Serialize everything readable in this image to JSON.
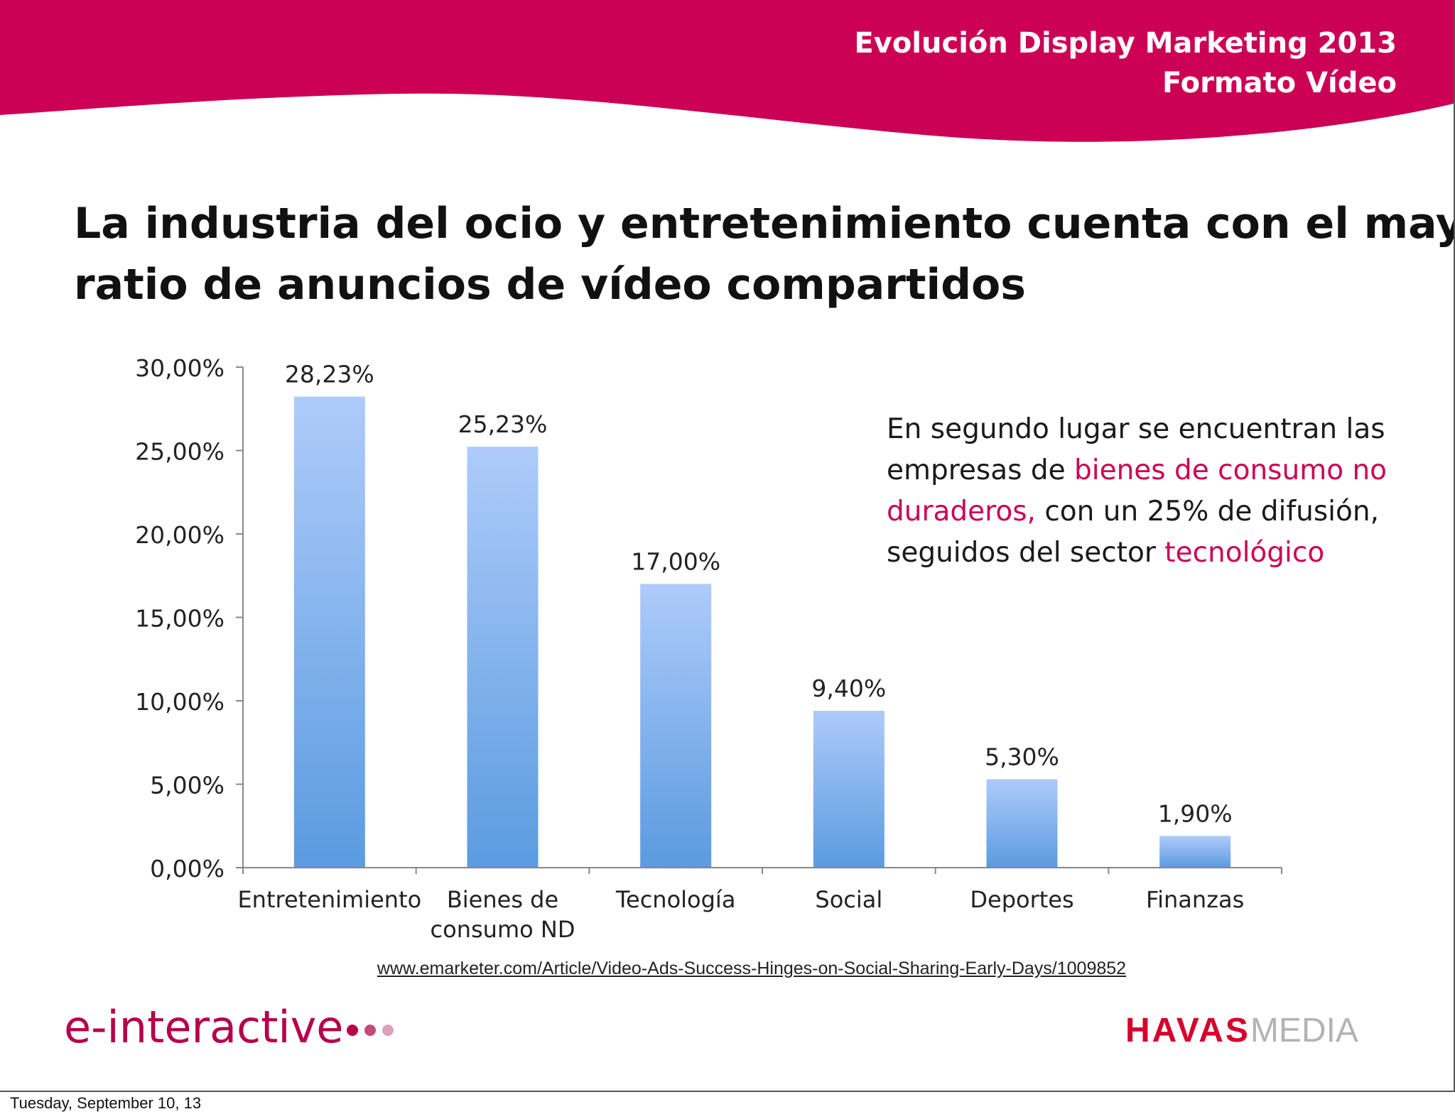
{
  "header": {
    "title": "Evolución Display Marketing 2013",
    "subtitle": "Formato Vídeo",
    "band_color": "#cc0055"
  },
  "headline": {
    "line1": "La industria del ocio y entretenimiento cuenta con el mayor",
    "line2": "ratio de anuncios de vídeo compartidos"
  },
  "chart_data": {
    "type": "bar",
    "categories": [
      [
        "Entretenimiento"
      ],
      [
        "Bienes de",
        "consumo ND"
      ],
      [
        "Tecnología"
      ],
      [
        "Social"
      ],
      [
        "Deportes"
      ],
      [
        "Finanzas"
      ]
    ],
    "values": [
      28.23,
      25.23,
      17.0,
      9.4,
      5.3,
      1.9
    ],
    "data_labels": [
      "28,23%",
      "25,23%",
      "17,00%",
      "9,40%",
      "5,30%",
      "1,90%"
    ],
    "yticks": [
      "0,00%",
      "5,00%",
      "10,00%",
      "15,00%",
      "20,00%",
      "25,00%",
      "30,00%"
    ],
    "ylim": [
      0,
      30
    ],
    "grid": false,
    "bar_color_top": "#aecbfa",
    "bar_color_bottom": "#5b9be0"
  },
  "callout": {
    "part1": "En segundo lugar se encuentran las empresas de ",
    "highlight1": "bienes de consumo no duraderos,",
    "part2": " con un 25% de difusión, seguidos del sector ",
    "highlight2": "tecnológico",
    "highlight_color": "#cc0055"
  },
  "source": {
    "url_text": "www.emarketer.com/Article/Video-Ads-Success-Hinges-on-Social-Sharing-Early-Days/1009852"
  },
  "logos": {
    "left": "e-interactive",
    "left_dots": [
      "#b5004a",
      "#c44a7a",
      "#dca0b8"
    ],
    "right_bold": "HAVAS",
    "right_light": "MEDIA"
  },
  "footer": {
    "date": "Tuesday, September 10, 13"
  }
}
